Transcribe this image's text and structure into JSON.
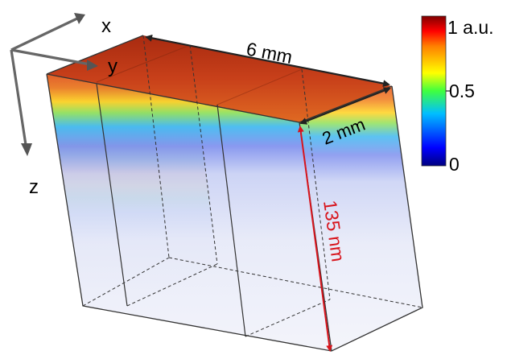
{
  "axes": {
    "x": "x",
    "y": "y",
    "z": "z"
  },
  "dimensions": {
    "width": "6 mm",
    "depth": "2 mm",
    "height": "135 nm"
  },
  "colorbar": {
    "max_label": "1 a.u.",
    "mid_label": "0.5",
    "min_label": "0"
  },
  "colors": {
    "dimension_red": "#d8141c",
    "box_edge": "#333333",
    "arrow": "#555555",
    "colormap": [
      "#00007f",
      "#0000ff",
      "#00bfff",
      "#3fff3f",
      "#ffff00",
      "#ff7f00",
      "#ff0000",
      "#7f0000"
    ]
  }
}
